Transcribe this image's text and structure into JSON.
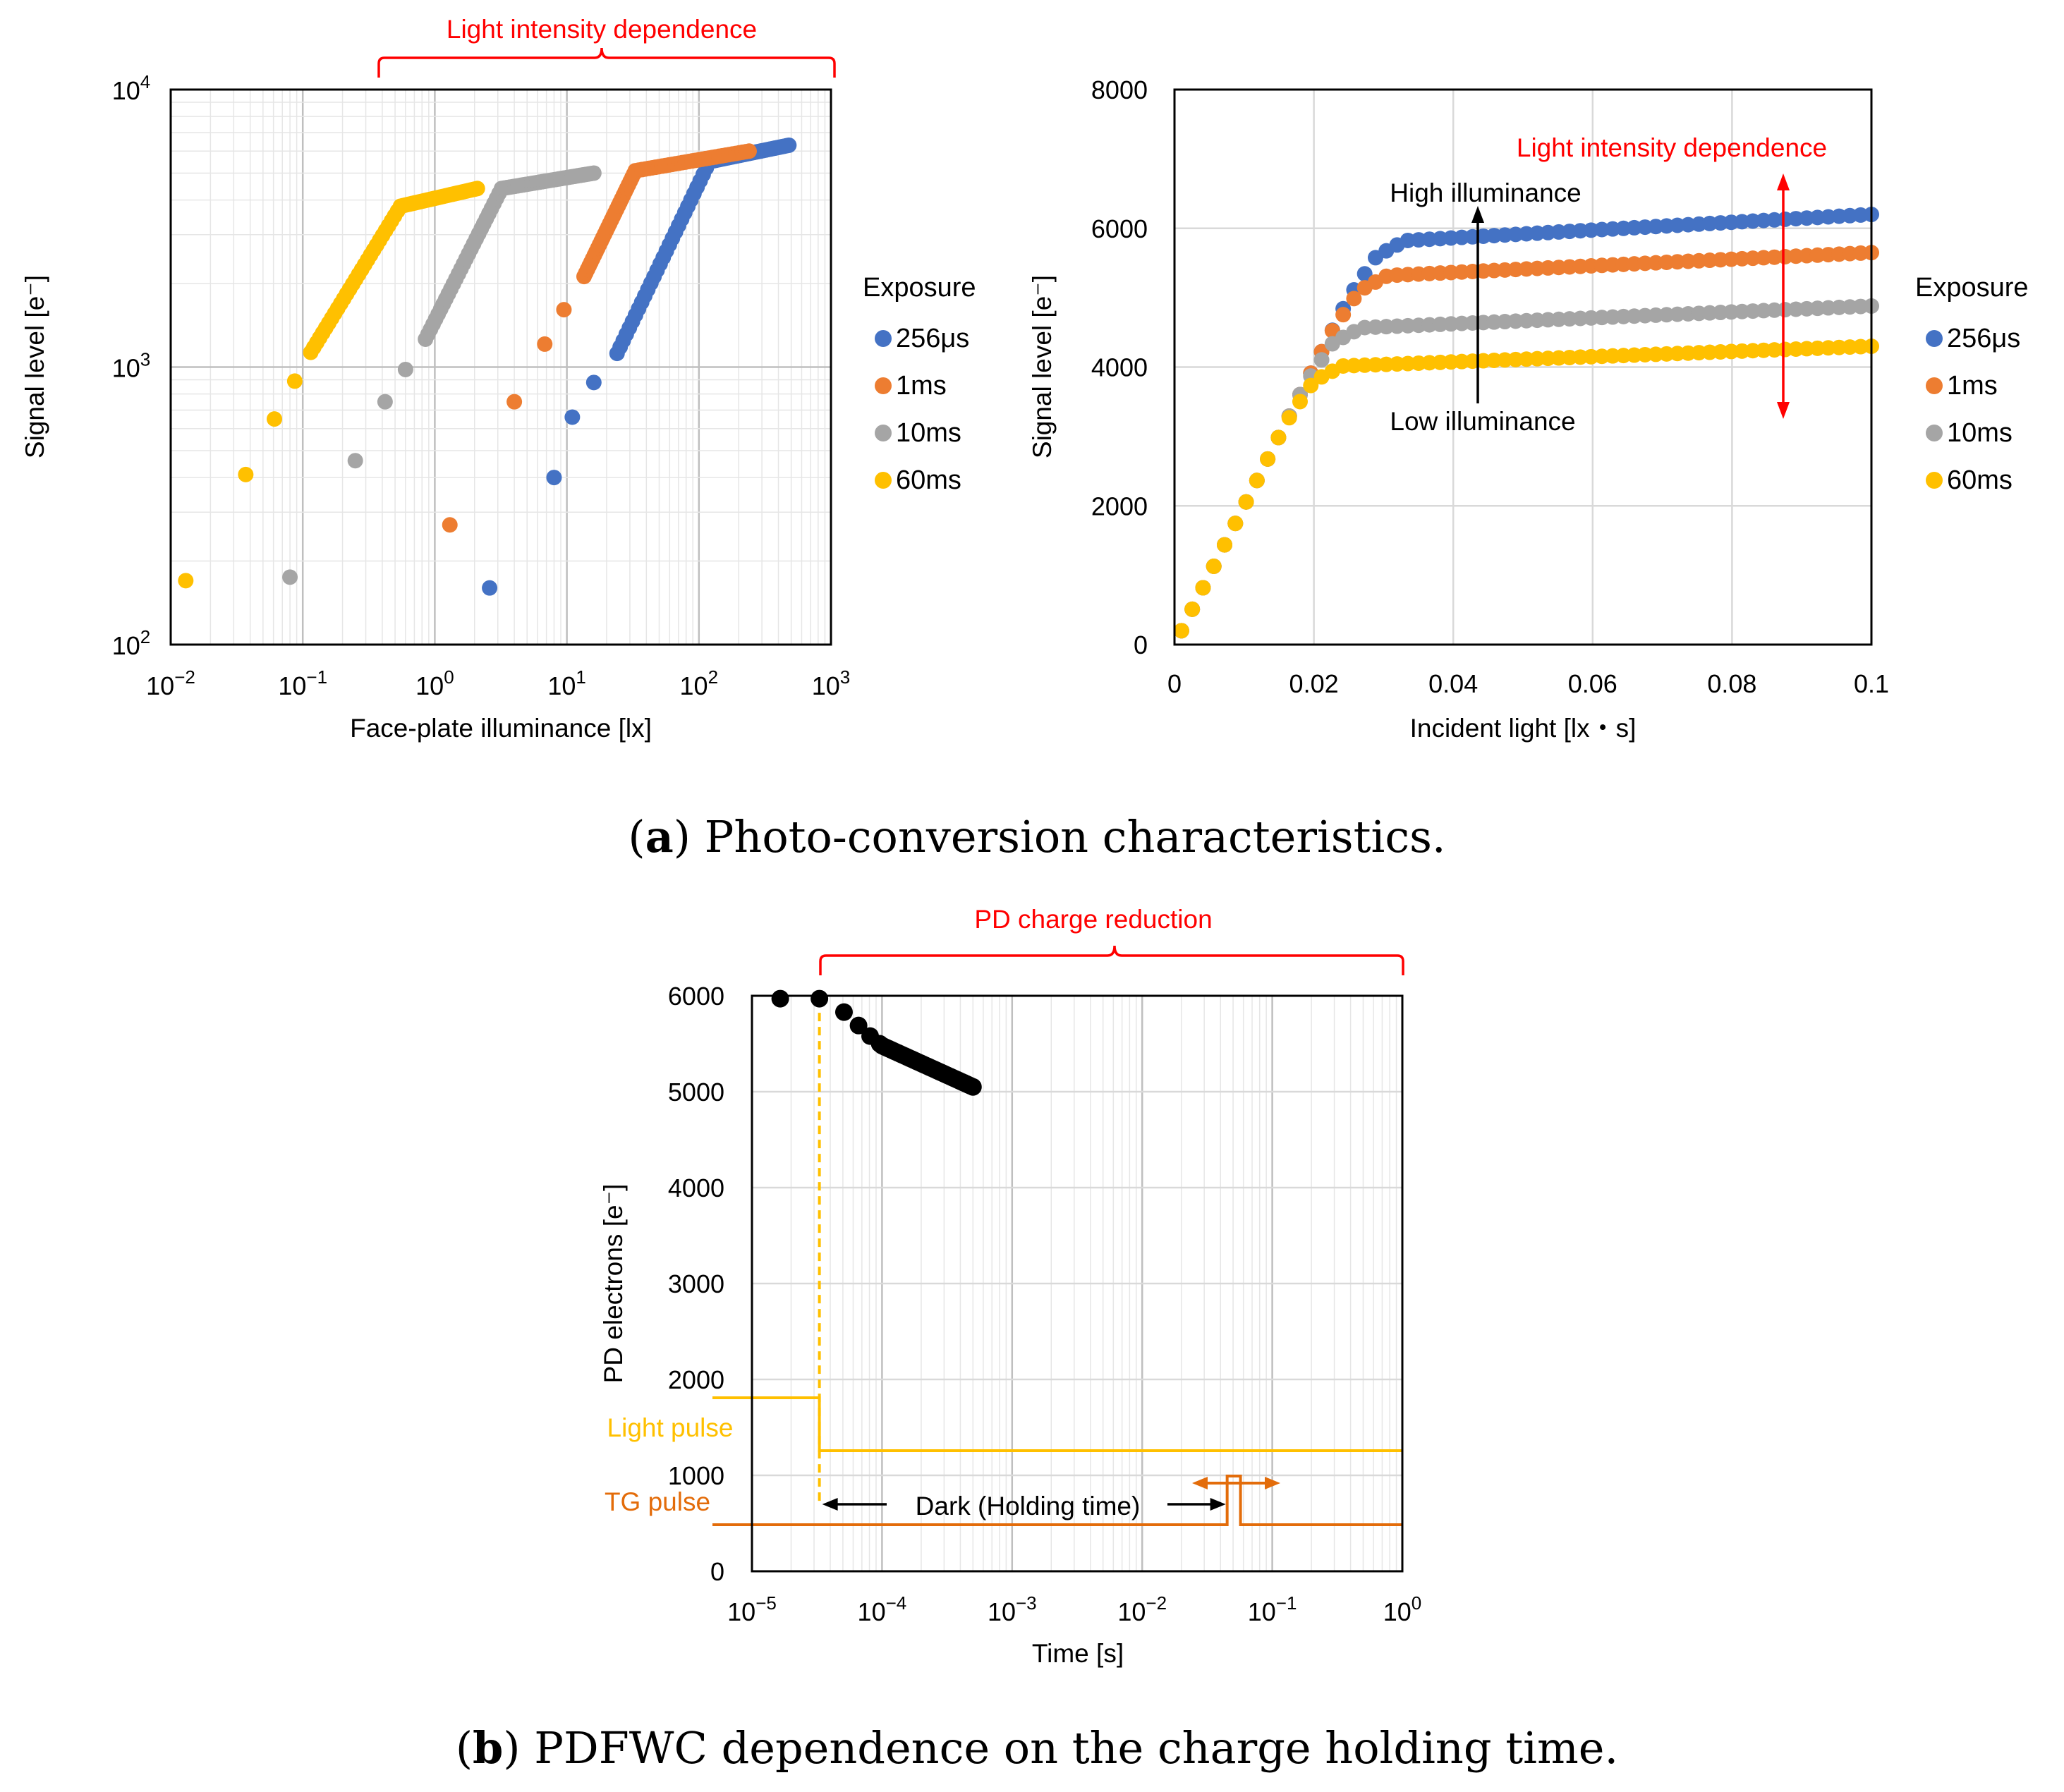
{
  "captions": {
    "a_label": "a",
    "a_text": "Photo-conversion characteristics.",
    "b_label": "b",
    "b_text": "PDFWC dependence on the charge holding time."
  },
  "colors": {
    "blue": "#4472c4",
    "orange": "#ed7d31",
    "gray": "#a5a5a5",
    "yellow": "#ffc000",
    "red": "#ff0000",
    "dark_orange": "#e36c0a",
    "black": "#000000"
  },
  "chart_data": [
    {
      "id": "a_left",
      "type": "scatter",
      "xscale": "log",
      "yscale": "log",
      "xlim": [
        0.01,
        1000
      ],
      "ylim": [
        100,
        10000
      ],
      "xticks": [
        {
          "base": "10",
          "exp": "−2"
        },
        {
          "base": "10",
          "exp": "−1"
        },
        {
          "base": "10",
          "exp": "0"
        },
        {
          "base": "10",
          "exp": "1"
        },
        {
          "base": "10",
          "exp": "2"
        },
        {
          "base": "10",
          "exp": "3"
        }
      ],
      "yticks": [
        {
          "base": "10",
          "exp": "2"
        },
        {
          "base": "10",
          "exp": "3"
        },
        {
          "base": "10",
          "exp": "4"
        }
      ],
      "xlabel": "Face-plate illuminance [lx]",
      "ylabel": "Signal level [e⁻]",
      "grid": true,
      "legend_title": "Exposure",
      "legend_position": "right",
      "annotation": "Light intensity dependence",
      "bracket_range_lx": [
        0.4,
        1000
      ],
      "series": [
        {
          "name": "256μs",
          "color": "blue",
          "knee_x": 120,
          "knee_y": 5500,
          "end_x": 480,
          "end_y": 6300,
          "points": [
            [
              2.6,
              160
            ],
            [
              8,
              400
            ],
            [
              11,
              660
            ],
            [
              16,
              880
            ],
            [
              24,
              1120
            ]
          ]
        },
        {
          "name": "1ms",
          "color": "orange",
          "knee_x": 33,
          "knee_y": 5100,
          "end_x": 240,
          "end_y": 6000,
          "points": [
            [
              1.3,
              270
            ],
            [
              4,
              750
            ],
            [
              6.8,
              1210
            ],
            [
              9.5,
              1610
            ],
            [
              13.5,
              2120
            ]
          ]
        },
        {
          "name": "10ms",
          "color": "gray",
          "knee_x": 3.2,
          "knee_y": 4400,
          "end_x": 16,
          "end_y": 5000,
          "points": [
            [
              0.08,
              175
            ],
            [
              0.25,
              460
            ],
            [
              0.42,
              750
            ],
            [
              0.6,
              980
            ],
            [
              0.85,
              1260
            ]
          ]
        },
        {
          "name": "60ms",
          "color": "yellow",
          "knee_x": 0.55,
          "knee_y": 3800,
          "end_x": 2.1,
          "end_y": 4400,
          "points": [
            [
              0.013,
              170
            ],
            [
              0.037,
              410
            ],
            [
              0.061,
              650
            ],
            [
              0.087,
              890
            ],
            [
              0.115,
              1130
            ]
          ]
        }
      ]
    },
    {
      "id": "a_right",
      "type": "scatter",
      "xlim": [
        0,
        0.1
      ],
      "ylim": [
        0,
        8000
      ],
      "xticks": [
        "0",
        "0.02",
        "0.04",
        "0.06",
        "0.08",
        "0.1"
      ],
      "yticks": [
        "0",
        "2000",
        "4000",
        "6000",
        "8000"
      ],
      "xlabel": "Incident light [lx・s]",
      "ylabel": "Signal level [e⁻]",
      "grid": true,
      "legend_title": "Exposure",
      "legend_position": "right",
      "annotations": {
        "high": "High illuminance",
        "low": "Low illuminance",
        "intensity": "Light intensity dependence"
      },
      "series": [
        {
          "name": "256μs",
          "color": "blue",
          "slope": 200000,
          "sat": 5800,
          "end": 6200
        },
        {
          "name": "1ms",
          "color": "orange",
          "slope": 200000,
          "sat": 5300,
          "end": 5650
        },
        {
          "name": "10ms",
          "color": "gray",
          "slope": 200000,
          "sat": 4550,
          "end": 4880
        },
        {
          "name": "60ms",
          "color": "yellow",
          "slope": 200000,
          "sat": 4000,
          "end": 4300
        }
      ]
    },
    {
      "id": "b",
      "type": "scatter",
      "xscale": "log",
      "xlim": [
        1e-05,
        1
      ],
      "ylim": [
        0,
        6000
      ],
      "xticks": [
        {
          "base": "10",
          "exp": "−5"
        },
        {
          "base": "10",
          "exp": "−4"
        },
        {
          "base": "10",
          "exp": "−3"
        },
        {
          "base": "10",
          "exp": "−2"
        },
        {
          "base": "10",
          "exp": "−1"
        },
        {
          "base": "10",
          "exp": "0"
        }
      ],
      "yticks": [
        "0",
        "1000",
        "2000",
        "3000",
        "4000",
        "5000",
        "6000"
      ],
      "xlabel": "Time [s]",
      "ylabel": "PD electrons [e⁻]",
      "grid": true,
      "annotations": {
        "title": "PD charge reduction",
        "light_pulse": "Light pulse",
        "tg_pulse": "TG pulse",
        "dark": "Dark (Holding time)"
      },
      "points": [
        [
          1.65e-05,
          5970
        ],
        [
          3.3e-05,
          5970
        ],
        [
          5.1e-05,
          5830
        ],
        [
          6.6e-05,
          5690
        ],
        [
          8.1e-05,
          5580
        ],
        [
          9.6e-05,
          5500
        ]
      ],
      "decay_start": [
        0.0001,
        5480
      ],
      "decay_end": [
        0.0005,
        5050
      ]
    }
  ]
}
